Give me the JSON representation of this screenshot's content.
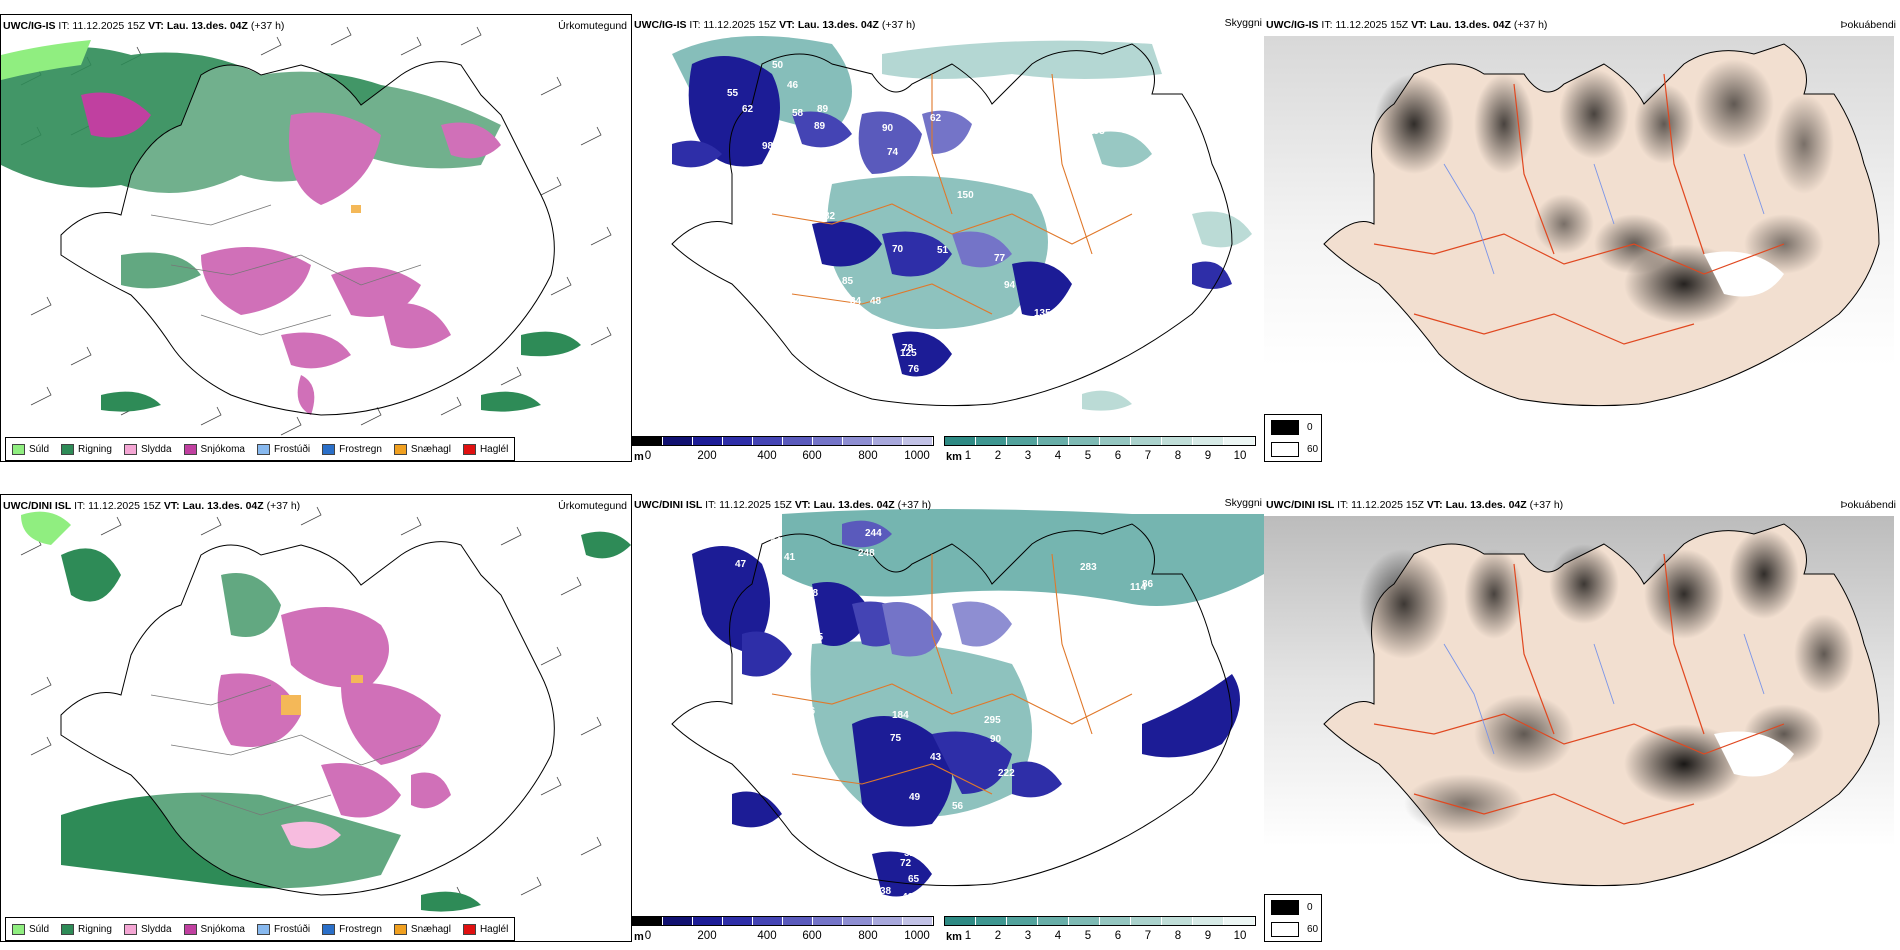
{
  "rows": [
    {
      "model": "UWC/IG-IS",
      "it": "IT: 11.12.2025 15Z",
      "vt_label": "VT:",
      "vt": "Lau. 13.des. 04Z",
      "lead": "(+37 h)"
    },
    {
      "model": "UWC/DINI ISL",
      "it": "IT: 11.12.2025 15Z",
      "vt_label": "VT:",
      "vt": "Lau. 13.des. 04Z",
      "lead": "(+37 h)"
    }
  ],
  "panel_labels": {
    "precip_type": "Úrkomutegund",
    "visibility": "Skyggni",
    "fog": "Þokuábendi"
  },
  "precip_legend": [
    {
      "label": "Súld",
      "color": "#90ee80"
    },
    {
      "label": "Rigning",
      "color": "#2e8b57"
    },
    {
      "label": "Slydda",
      "color": "#f4a6d4"
    },
    {
      "label": "Snjókoma",
      "color": "#c040a0"
    },
    {
      "label": "Frostúði",
      "color": "#87b8ee"
    },
    {
      "label": "Frostregn",
      "color": "#2a6fc8"
    },
    {
      "label": "Snæhagl",
      "color": "#f0a020"
    },
    {
      "label": "Haglél",
      "color": "#e01010"
    }
  ],
  "vis_m_scale": {
    "unit": "m",
    "ticks": [
      "0",
      "200",
      "400",
      "600",
      "800",
      "1000"
    ],
    "colors": [
      "#000000",
      "#101070",
      "#1c1c96",
      "#2e2ea8",
      "#4444b4",
      "#5a5abc",
      "#7474c8",
      "#8e8ed2",
      "#a8a8dc",
      "#c2c2e6"
    ]
  },
  "vis_km_scale": {
    "unit": "km",
    "ticks": [
      "1",
      "2",
      "3",
      "4",
      "5",
      "6",
      "7",
      "8",
      "9",
      "10"
    ],
    "colors": [
      "#2e8a84",
      "#3e9690",
      "#52a29c",
      "#68aea8",
      "#7ebab4",
      "#94c6c0",
      "#aad2cc",
      "#c0ded8",
      "#d6eae6",
      "#ecf6f4"
    ]
  },
  "fog_legend": [
    {
      "label": "0",
      "color": "#000000"
    },
    {
      "label": "60",
      "color": "#ffffff"
    }
  ],
  "vis_labels_top": [
    "50",
    "46",
    "55",
    "62",
    "58",
    "89",
    "98",
    "89",
    "68",
    "61",
    "92",
    "82",
    "90",
    "74",
    "62",
    "31",
    "150",
    "193",
    "51",
    "70",
    "85",
    "84",
    "48",
    "77",
    "94",
    "135",
    "68",
    "125",
    "76",
    "48",
    "78"
  ],
  "vis_labels_bottom": [
    "44",
    "244",
    "248",
    "43",
    "47",
    "41",
    "38",
    "69",
    "74",
    "65",
    "75",
    "79",
    "46",
    "184",
    "75",
    "43",
    "49",
    "56",
    "102",
    "37",
    "51",
    "72",
    "65",
    "46",
    "38",
    "283",
    "114",
    "86",
    "126",
    "295",
    "90",
    "222"
  ]
}
